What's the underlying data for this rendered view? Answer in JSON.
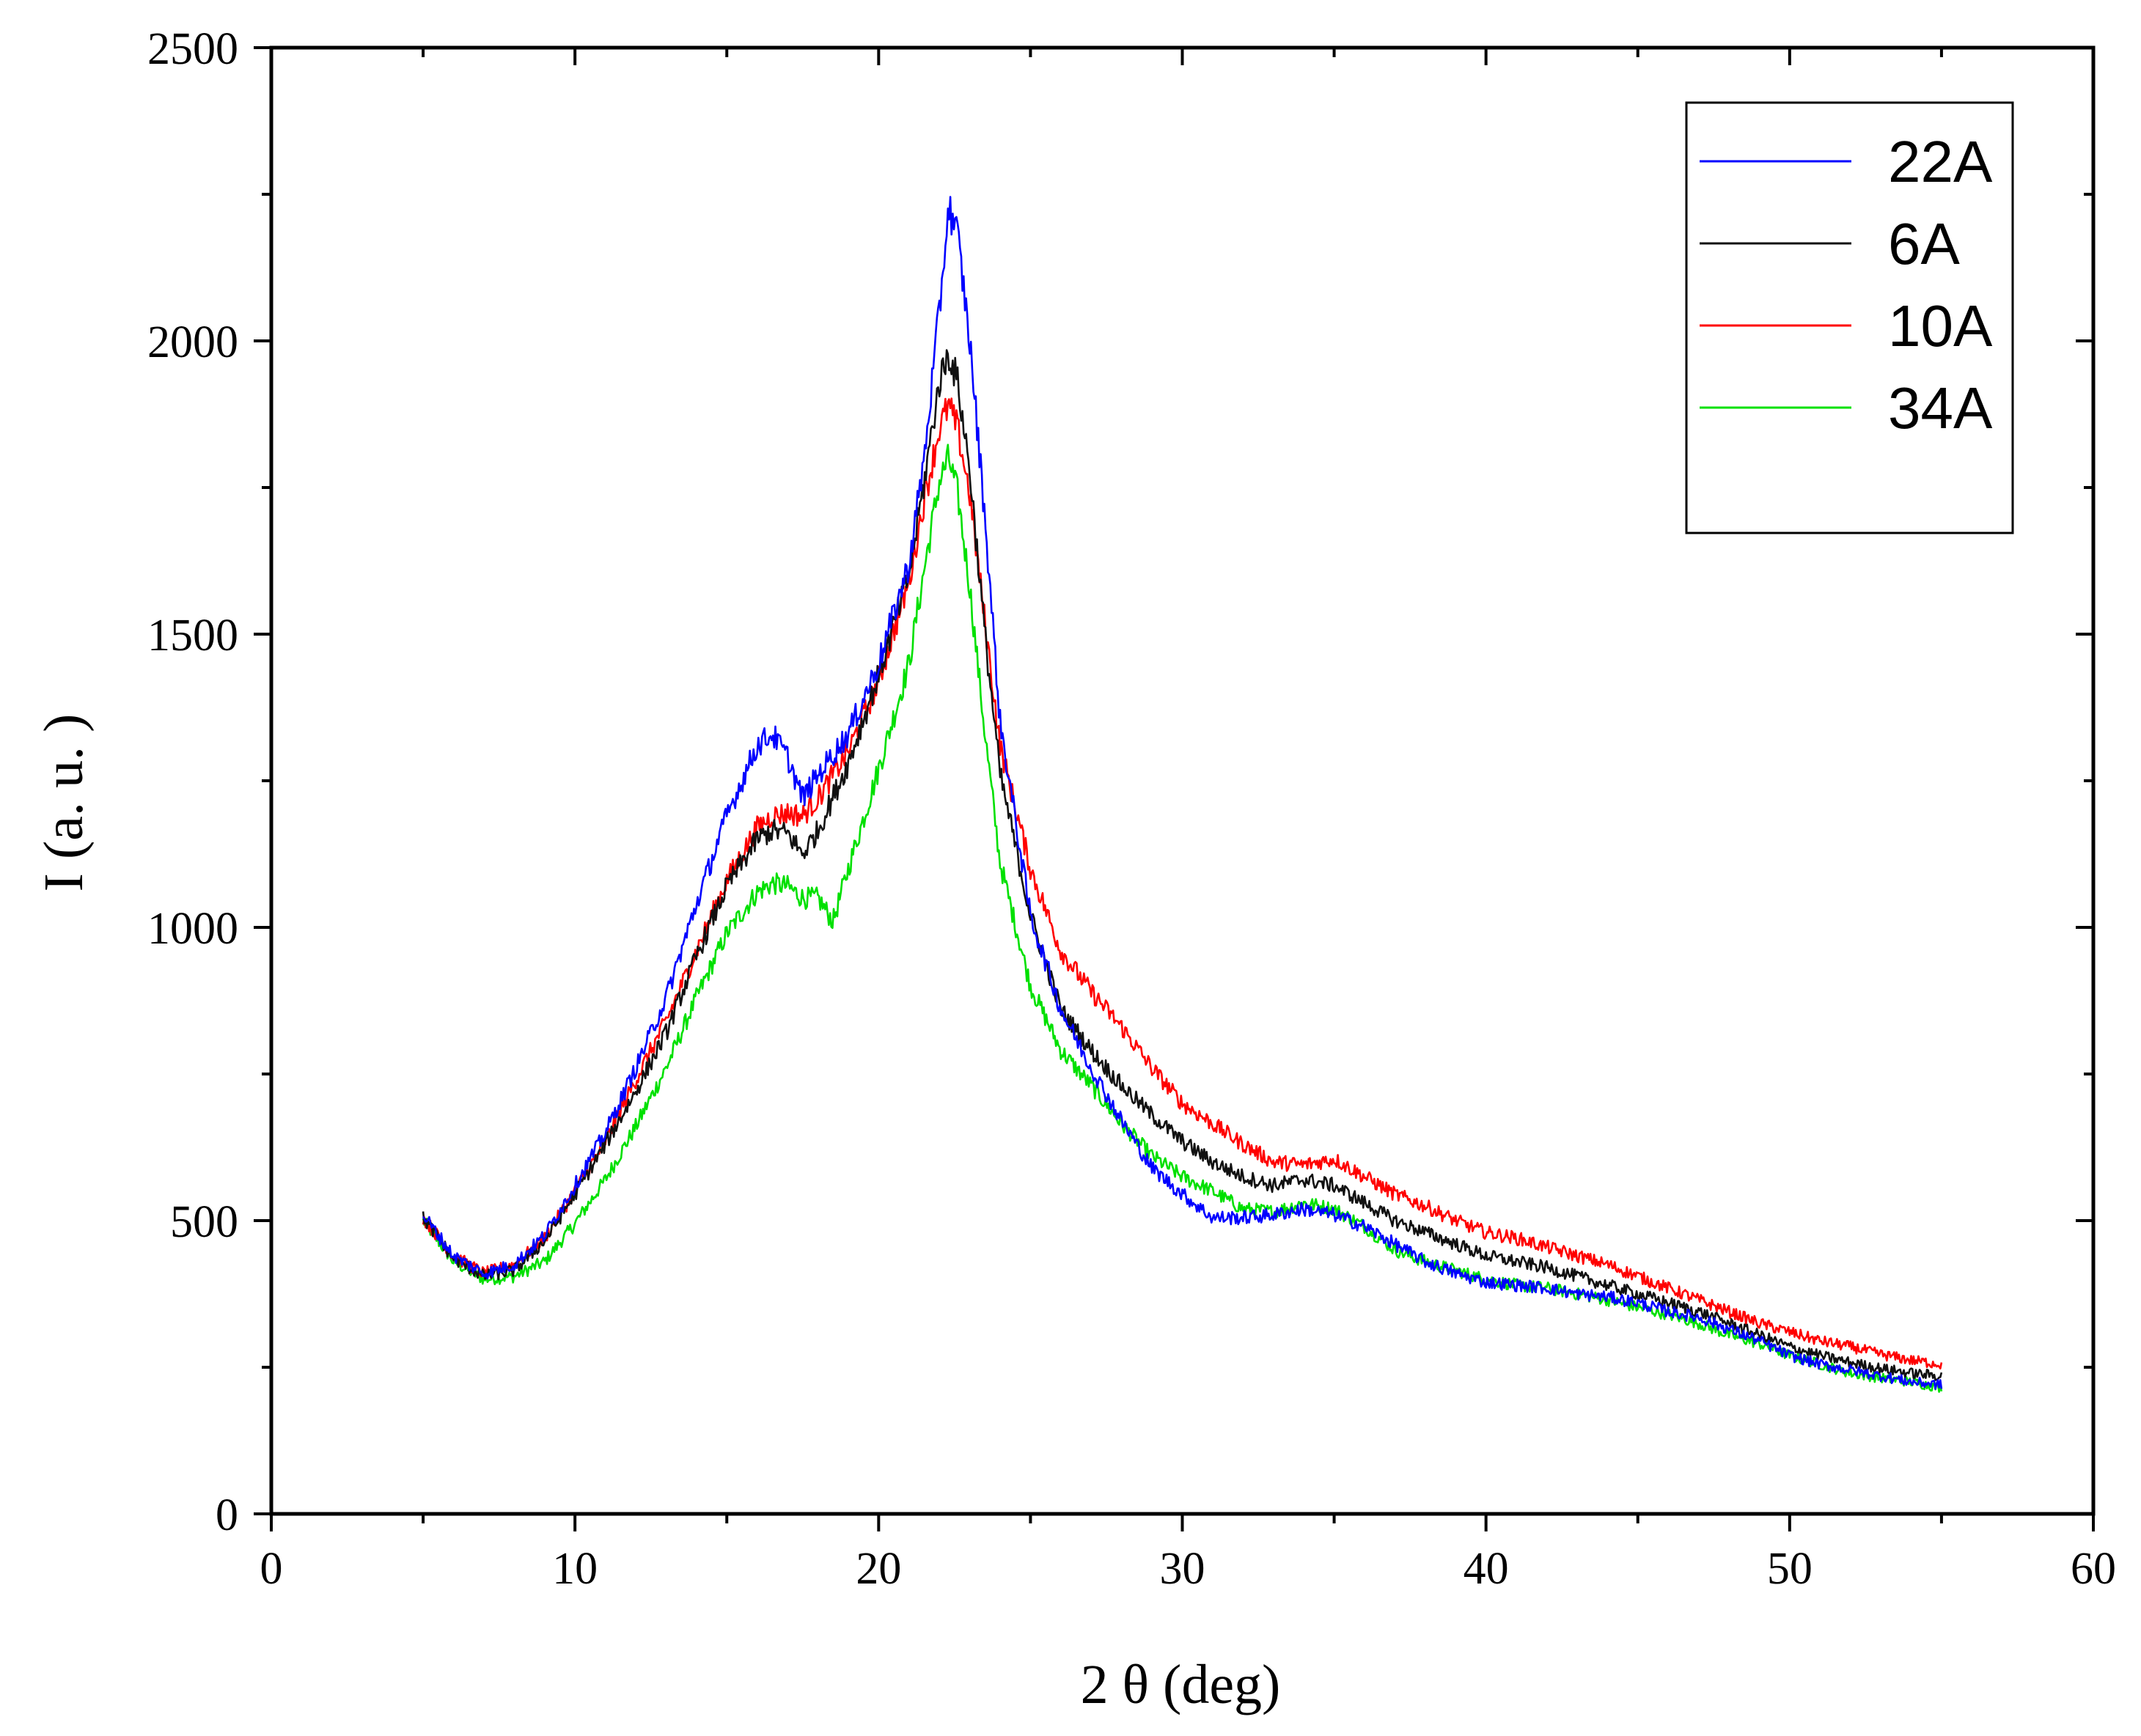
{
  "chart_data": {
    "type": "line",
    "title": "",
    "xlabel": "2 θ (deg)",
    "ylabel": "I (a. u. )",
    "xlim": [
      0,
      60
    ],
    "ylim": [
      0,
      2500
    ],
    "xticks": [
      0,
      10,
      20,
      30,
      40,
      50,
      60
    ],
    "xtick_labels": [
      "0",
      "10",
      "20",
      "30",
      "40",
      "50",
      "60"
    ],
    "yticks": [
      0,
      500,
      1000,
      1500,
      2000,
      2500
    ],
    "ytick_labels": [
      "0",
      "500",
      "1000",
      "1500",
      "2000",
      "2500"
    ],
    "grid": false,
    "legend_position": "top-right",
    "series": [
      {
        "name": "22A",
        "color": "#0000ff",
        "x": [
          5,
          6,
          7,
          8,
          9,
          10,
          11,
          12,
          13,
          14,
          15,
          16,
          16.5,
          17,
          17.5,
          18,
          19,
          20,
          21,
          21.5,
          22,
          22.3,
          22.6,
          23,
          23.5,
          24,
          25,
          26,
          27,
          28,
          29,
          30,
          31,
          32,
          33,
          34,
          35,
          36,
          37,
          38,
          39,
          40,
          41,
          42,
          43,
          44,
          45,
          46,
          47,
          48,
          49,
          50,
          51,
          52,
          53,
          54,
          55
        ],
        "y": [
          510,
          440,
          410,
          425,
          475,
          560,
          650,
          760,
          880,
          1040,
          1190,
          1310,
          1330,
          1290,
          1220,
          1260,
          1330,
          1450,
          1620,
          1800,
          2050,
          2230,
          2180,
          2000,
          1700,
          1350,
          1020,
          860,
          760,
          670,
          590,
          545,
          505,
          505,
          510,
          520,
          510,
          490,
          460,
          430,
          410,
          395,
          390,
          385,
          375,
          370,
          360,
          345,
          335,
          315,
          295,
          270,
          255,
          245,
          235,
          225,
          220
        ]
      },
      {
        "name": "6A",
        "color": "#111111",
        "x": [
          5,
          6,
          7,
          8,
          9,
          10,
          11,
          12,
          13,
          14,
          15,
          16,
          16.5,
          17,
          17.5,
          18,
          19,
          20,
          21,
          21.5,
          22,
          22.3,
          22.6,
          23,
          23.5,
          24,
          25,
          26,
          27,
          28,
          29,
          30,
          31,
          32,
          33,
          34,
          35,
          36,
          37,
          38,
          39,
          40,
          41,
          42,
          43,
          44,
          45,
          46,
          47,
          48,
          49,
          50,
          51,
          52,
          53,
          54,
          55
        ],
        "y": [
          505,
          435,
          405,
          415,
          465,
          545,
          630,
          720,
          820,
          950,
          1070,
          1150,
          1165,
          1160,
          1125,
          1165,
          1280,
          1430,
          1600,
          1760,
          1930,
          1980,
          1930,
          1780,
          1500,
          1260,
          1020,
          860,
          790,
          730,
          680,
          635,
          600,
          575,
          560,
          570,
          560,
          530,
          500,
          480,
          460,
          440,
          430,
          420,
          405,
          390,
          375,
          360,
          345,
          325,
          305,
          285,
          270,
          258,
          248,
          240,
          235
        ]
      },
      {
        "name": "10A",
        "color": "#ff0000",
        "x": [
          5,
          6,
          7,
          8,
          9,
          10,
          11,
          12,
          13,
          14,
          15,
          16,
          16.5,
          17,
          17.5,
          18,
          19,
          20,
          21,
          21.5,
          22,
          22.3,
          22.6,
          23,
          23.5,
          24,
          25,
          26,
          27,
          28,
          29,
          30,
          31,
          32,
          33,
          34,
          35,
          36,
          37,
          38,
          39,
          40,
          41,
          42,
          43,
          44,
          45,
          46,
          47,
          48,
          49,
          50,
          51,
          52,
          53,
          54,
          55
        ],
        "y": [
          505,
          440,
          410,
          425,
          470,
          550,
          635,
          740,
          840,
          960,
          1080,
          1170,
          1190,
          1195,
          1190,
          1220,
          1300,
          1420,
          1590,
          1730,
          1850,
          1890,
          1850,
          1740,
          1520,
          1310,
          1100,
          960,
          890,
          830,
          760,
          700,
          665,
          630,
          600,
          595,
          605,
          575,
          545,
          525,
          500,
          480,
          470,
          455,
          440,
          425,
          405,
          385,
          365,
          345,
          325,
          310,
          295,
          285,
          272,
          262,
          255
        ]
      },
      {
        "name": "34A",
        "color": "#00e000",
        "x": [
          5,
          6,
          7,
          8,
          9,
          10,
          11,
          12,
          13,
          14,
          15,
          16,
          16.5,
          17,
          17.5,
          18,
          18.5,
          19,
          20,
          21,
          21.5,
          22,
          22.3,
          22.6,
          23,
          23.5,
          24,
          25,
          26,
          27,
          28,
          29,
          30,
          31,
          32,
          33,
          34,
          35,
          36,
          37,
          38,
          39,
          40,
          41,
          42,
          43,
          44,
          45,
          46,
          47,
          48,
          49,
          50,
          51,
          52,
          53,
          54,
          55
        ],
        "y": [
          500,
          430,
          400,
          405,
          430,
          495,
          570,
          660,
          760,
          880,
          990,
          1060,
          1075,
          1070,
          1050,
          1050,
          1010,
          1100,
          1270,
          1450,
          1610,
          1760,
          1800,
          1740,
          1580,
          1330,
          1110,
          900,
          790,
          730,
          665,
          610,
          575,
          550,
          520,
          515,
          530,
          520,
          490,
          450,
          430,
          415,
          400,
          390,
          385,
          375,
          365,
          352,
          340,
          325,
          305,
          290,
          270,
          255,
          240,
          232,
          225,
          215
        ]
      }
    ]
  }
}
